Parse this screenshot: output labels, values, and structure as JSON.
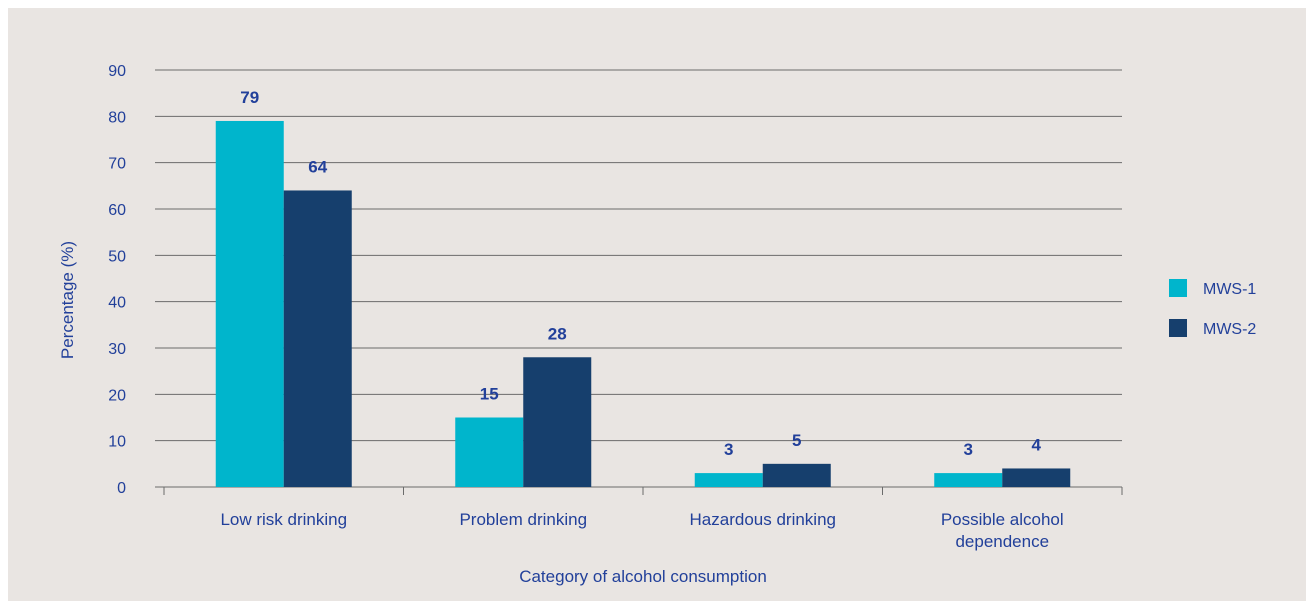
{
  "chart_data": {
    "type": "bar",
    "categories": [
      "Low risk drinking",
      "Problem drinking",
      "Hazardous drinking",
      "Possible alcohol dependence"
    ],
    "category_lines": [
      [
        "Low risk drinking"
      ],
      [
        "Problem drinking"
      ],
      [
        "Hazardous drinking"
      ],
      [
        "Possible alcohol",
        "dependence"
      ]
    ],
    "series": [
      {
        "name": "MWS-1",
        "values": [
          79,
          15,
          3,
          3
        ],
        "color": "#00b5cc"
      },
      {
        "name": "MWS-2",
        "values": [
          64,
          28,
          5,
          4
        ],
        "color": "#163f6d"
      }
    ],
    "title": "",
    "xlabel": "Category of alcohol consumption",
    "ylabel": "Percentage (%)",
    "ylim": [
      0,
      90
    ],
    "yticks": [
      "0",
      "10",
      "20",
      "30",
      "40",
      "50",
      "60",
      "70",
      "80",
      "90"
    ],
    "grid": true,
    "legend_position": "right",
    "colors": {
      "background": "#e9e5e2",
      "text": "#22409a",
      "grid": "#6b6b6b"
    }
  }
}
